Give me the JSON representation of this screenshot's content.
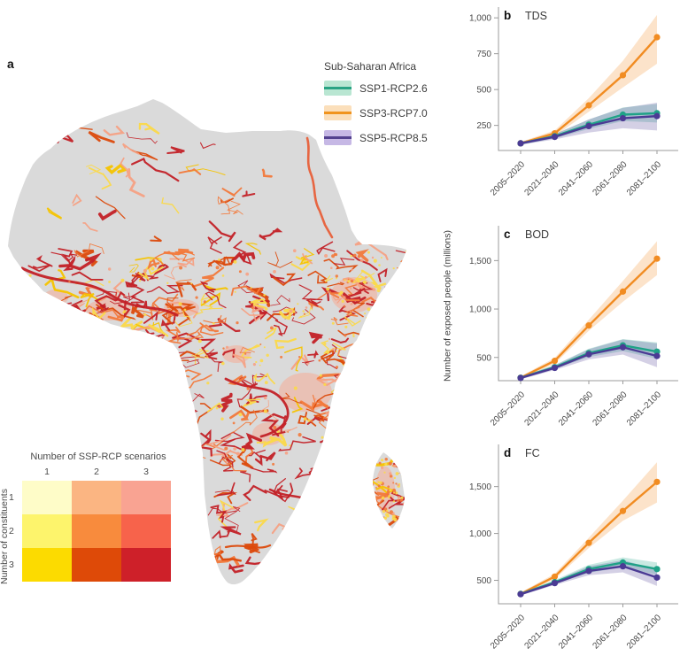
{
  "figure": {
    "panels": {
      "a": "a",
      "b": "b",
      "c": "c",
      "d": "d"
    },
    "map_legend": {
      "title": "Sub-Saharan Africa",
      "entries": [
        {
          "label": "SSP1-RCP2.6",
          "line_color": "#29A383",
          "band_color": "#B9E6D2"
        },
        {
          "label": "SSP3-RCP7.0",
          "line_color": "#F0941F",
          "band_color": "#FBDFBB"
        },
        {
          "label": "SSP5-RCP8.5",
          "line_color": "#53418F",
          "band_color": "#C6B8E5"
        }
      ]
    },
    "matrix_legend": {
      "title": "Number of SSP-RCP scenarios",
      "column_values": [
        "1",
        "2",
        "3"
      ],
      "row_axis_label": "Number of constituents",
      "row_values": [
        "1",
        "2",
        "3"
      ],
      "cell_colors": [
        [
          "#FEFCC8",
          "#FBB582",
          "#F9A392"
        ],
        [
          "#FDF46C",
          "#F88B3D",
          "#F7634B"
        ],
        [
          "#FCDB00",
          "#DE4A08",
          "#CE2029"
        ]
      ]
    },
    "map": {
      "land_color": "#DADADA",
      "background": "#FFFFFF"
    }
  },
  "charts": {
    "ylabel": "Number of exposed people (millions)"
  },
  "chart_data": [
    {
      "panel": "b",
      "type": "line",
      "title": "TDS",
      "categories": [
        "2005–2020",
        "2021–2040",
        "2041–2060",
        "2061–2080",
        "2081–2100"
      ],
      "yticks": [
        250,
        500,
        750,
        1000
      ],
      "ylim": [
        75,
        1075
      ],
      "legend_position": "map-panel",
      "grid": false,
      "series": [
        {
          "name": "SSP3-RCP7.0",
          "color": "#F18C22",
          "values": [
            125,
            195,
            390,
            600,
            865
          ],
          "band_low": [
            115,
            175,
            345,
            515,
            680
          ],
          "band_high": [
            135,
            215,
            440,
            700,
            1020
          ]
        },
        {
          "name": "SSP1-RCP2.6",
          "color": "#1FA287",
          "values": [
            125,
            175,
            255,
            325,
            335
          ],
          "band_low": [
            115,
            160,
            225,
            280,
            270
          ],
          "band_high": [
            135,
            190,
            290,
            375,
            400
          ]
        },
        {
          "name": "SSP5-RCP8.5",
          "color": "#4B3B94",
          "values": [
            125,
            170,
            245,
            300,
            315
          ],
          "band_low": [
            115,
            152,
            200,
            230,
            215
          ],
          "band_high": [
            135,
            188,
            292,
            372,
            408
          ]
        }
      ]
    },
    {
      "panel": "c",
      "type": "line",
      "title": "BOD",
      "categories": [
        "2005–2020",
        "2021–2040",
        "2041–2060",
        "2061–2080",
        "2081–2100"
      ],
      "yticks": [
        500,
        1000,
        1500
      ],
      "ylim": [
        260,
        1860
      ],
      "legend_position": "map-panel",
      "grid": false,
      "series": [
        {
          "name": "SSP3-RCP7.0",
          "color": "#F18C22",
          "values": [
            290,
            465,
            830,
            1180,
            1520
          ],
          "band_low": [
            275,
            435,
            775,
            1075,
            1350
          ],
          "band_high": [
            305,
            495,
            890,
            1290,
            1700
          ]
        },
        {
          "name": "SSP1-RCP2.6",
          "color": "#1FA287",
          "values": [
            290,
            400,
            545,
            625,
            560
          ],
          "band_low": [
            278,
            382,
            505,
            565,
            485
          ],
          "band_high": [
            302,
            422,
            590,
            690,
            655
          ]
        },
        {
          "name": "SSP5-RCP8.5",
          "color": "#4B3B94",
          "values": [
            288,
            392,
            532,
            605,
            515
          ],
          "band_low": [
            275,
            370,
            480,
            530,
            400
          ],
          "band_high": [
            300,
            418,
            585,
            685,
            645
          ]
        }
      ]
    },
    {
      "panel": "d",
      "type": "line",
      "title": "FC",
      "categories": [
        "2005–2020",
        "2021–2040",
        "2041–2060",
        "2061–2080",
        "2081–2100"
      ],
      "yticks": [
        500,
        1000,
        1500
      ],
      "ylim": [
        250,
        1950
      ],
      "legend_position": "map-panel",
      "grid": false,
      "series": [
        {
          "name": "SSP3-RCP7.0",
          "color": "#F18C22",
          "values": [
            355,
            540,
            900,
            1240,
            1550
          ],
          "band_low": [
            340,
            512,
            845,
            1135,
            1330
          ],
          "band_high": [
            370,
            570,
            955,
            1350,
            1760
          ]
        },
        {
          "name": "SSP1-RCP2.6",
          "color": "#1FA287",
          "values": [
            355,
            480,
            620,
            690,
            620
          ],
          "band_low": [
            342,
            460,
            580,
            640,
            560
          ],
          "band_high": [
            368,
            502,
            665,
            745,
            690
          ]
        },
        {
          "name": "SSP5-RCP8.5",
          "color": "#4B3B94",
          "values": [
            352,
            470,
            600,
            650,
            530
          ],
          "band_low": [
            340,
            450,
            555,
            585,
            440
          ],
          "band_high": [
            365,
            492,
            650,
            715,
            615
          ]
        }
      ]
    }
  ]
}
